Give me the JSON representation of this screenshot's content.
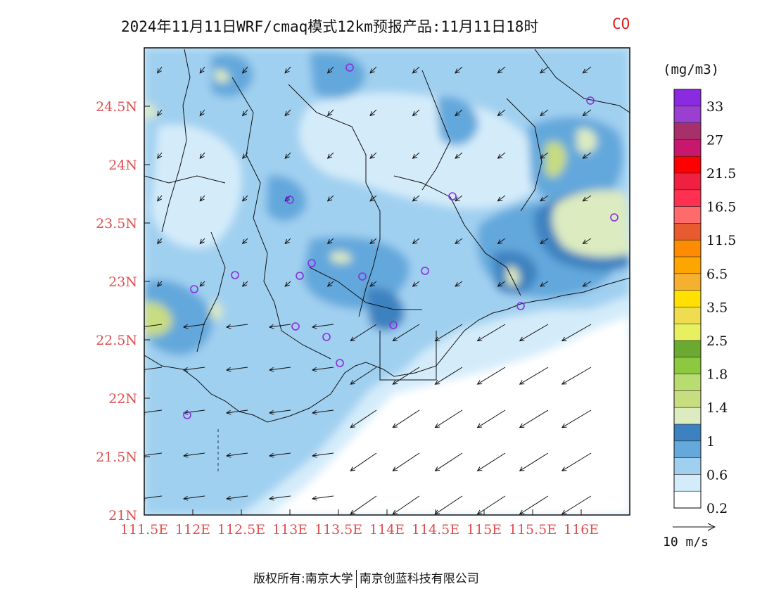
{
  "title": {
    "main": "2024年11月11日WRF/cmaq模式12km预报产品:11月11日18时",
    "species": "CO"
  },
  "map": {
    "lon_ticks": [
      "111.5E",
      "112E",
      "112.5E",
      "113E",
      "113.5E",
      "114E",
      "114.5E",
      "115E",
      "115.5E",
      "116E"
    ],
    "lat_ticks": [
      "24.5N",
      "24N",
      "23.5N",
      "23N",
      "22.5N",
      "22N",
      "21.5N",
      "21N"
    ],
    "lon_values": [
      111.5,
      112,
      112.5,
      113,
      113.5,
      114,
      114.5,
      115,
      115.5,
      116
    ],
    "lat_values": [
      24.5,
      24,
      23.5,
      23,
      22.5,
      22,
      21.5,
      21
    ],
    "lon_range": [
      111.5,
      116.5
    ],
    "lat_range": [
      21,
      25
    ],
    "tick_color": "#e05050"
  },
  "legend": {
    "unit": "(mg/m3)",
    "labels": [
      "33",
      "27",
      "21.5",
      "16.5",
      "11.5",
      "6.5",
      "3.5",
      "2.5",
      "1.8",
      "1.4",
      "1",
      "0.6",
      "0.2"
    ],
    "colors": [
      "#8a2be2",
      "#9b3fd0",
      "#a8306a",
      "#c8186e",
      "#ff0000",
      "#f02040",
      "#ff3050",
      "#ff6a6a",
      "#e85a30",
      "#ff8c00",
      "#ffa500",
      "#f5b030",
      "#ffe000",
      "#f0dc50",
      "#e8f060",
      "#6aaa30",
      "#8cc840",
      "#b8dc70",
      "#c8dc80",
      "#dcebc0",
      "#3c82c0",
      "#64a8dc",
      "#a0d0f0",
      "#d4ecfa",
      "#ffffff"
    ]
  },
  "reference_vector": {
    "label": "10 m/s"
  },
  "stations": {
    "marker_color": "#8a2be2"
  },
  "copyright": {
    "left": "版权所有:南京大学",
    "right": "南京创蓝科技有限公司"
  }
}
